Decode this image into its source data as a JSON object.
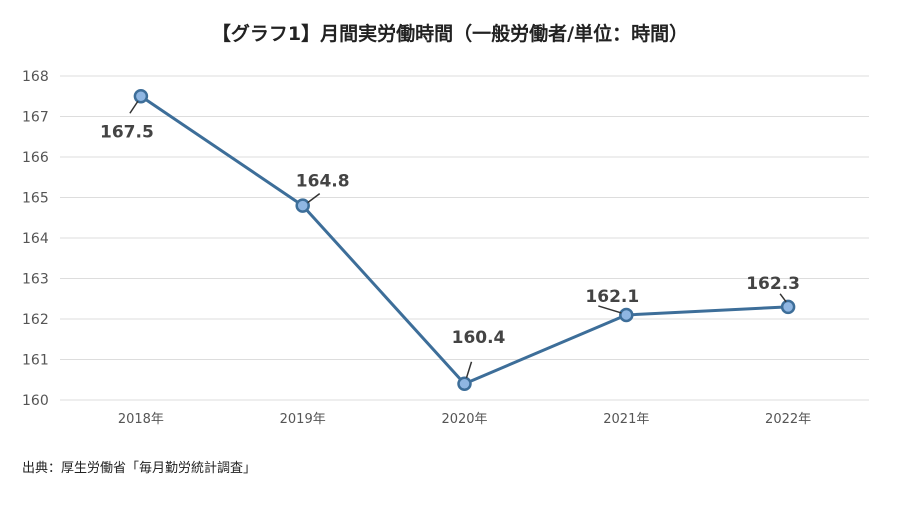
{
  "chart_data": {
    "type": "line",
    "title": "【グラフ1】月間実労働時間（一般労働者/単位：時間）",
    "categories": [
      "2018年",
      "2019年",
      "2020年",
      "2021年",
      "2022年"
    ],
    "series": [
      {
        "values": [
          167.5,
          164.8,
          160.4,
          162.1,
          162.3
        ]
      }
    ],
    "data_labels": true,
    "ylim": [
      160,
      168
    ],
    "yticks": [
      160,
      161,
      162,
      163,
      164,
      165,
      166,
      167,
      168
    ],
    "grid": "horizontal",
    "legend": "none",
    "colors": {
      "line": "#3d6e99",
      "marker_fill": "#8fb6e2",
      "grid": "#dddddd",
      "leader": "#333333"
    }
  },
  "source": "出典：厚生労働省「毎月勤労統計調査」"
}
